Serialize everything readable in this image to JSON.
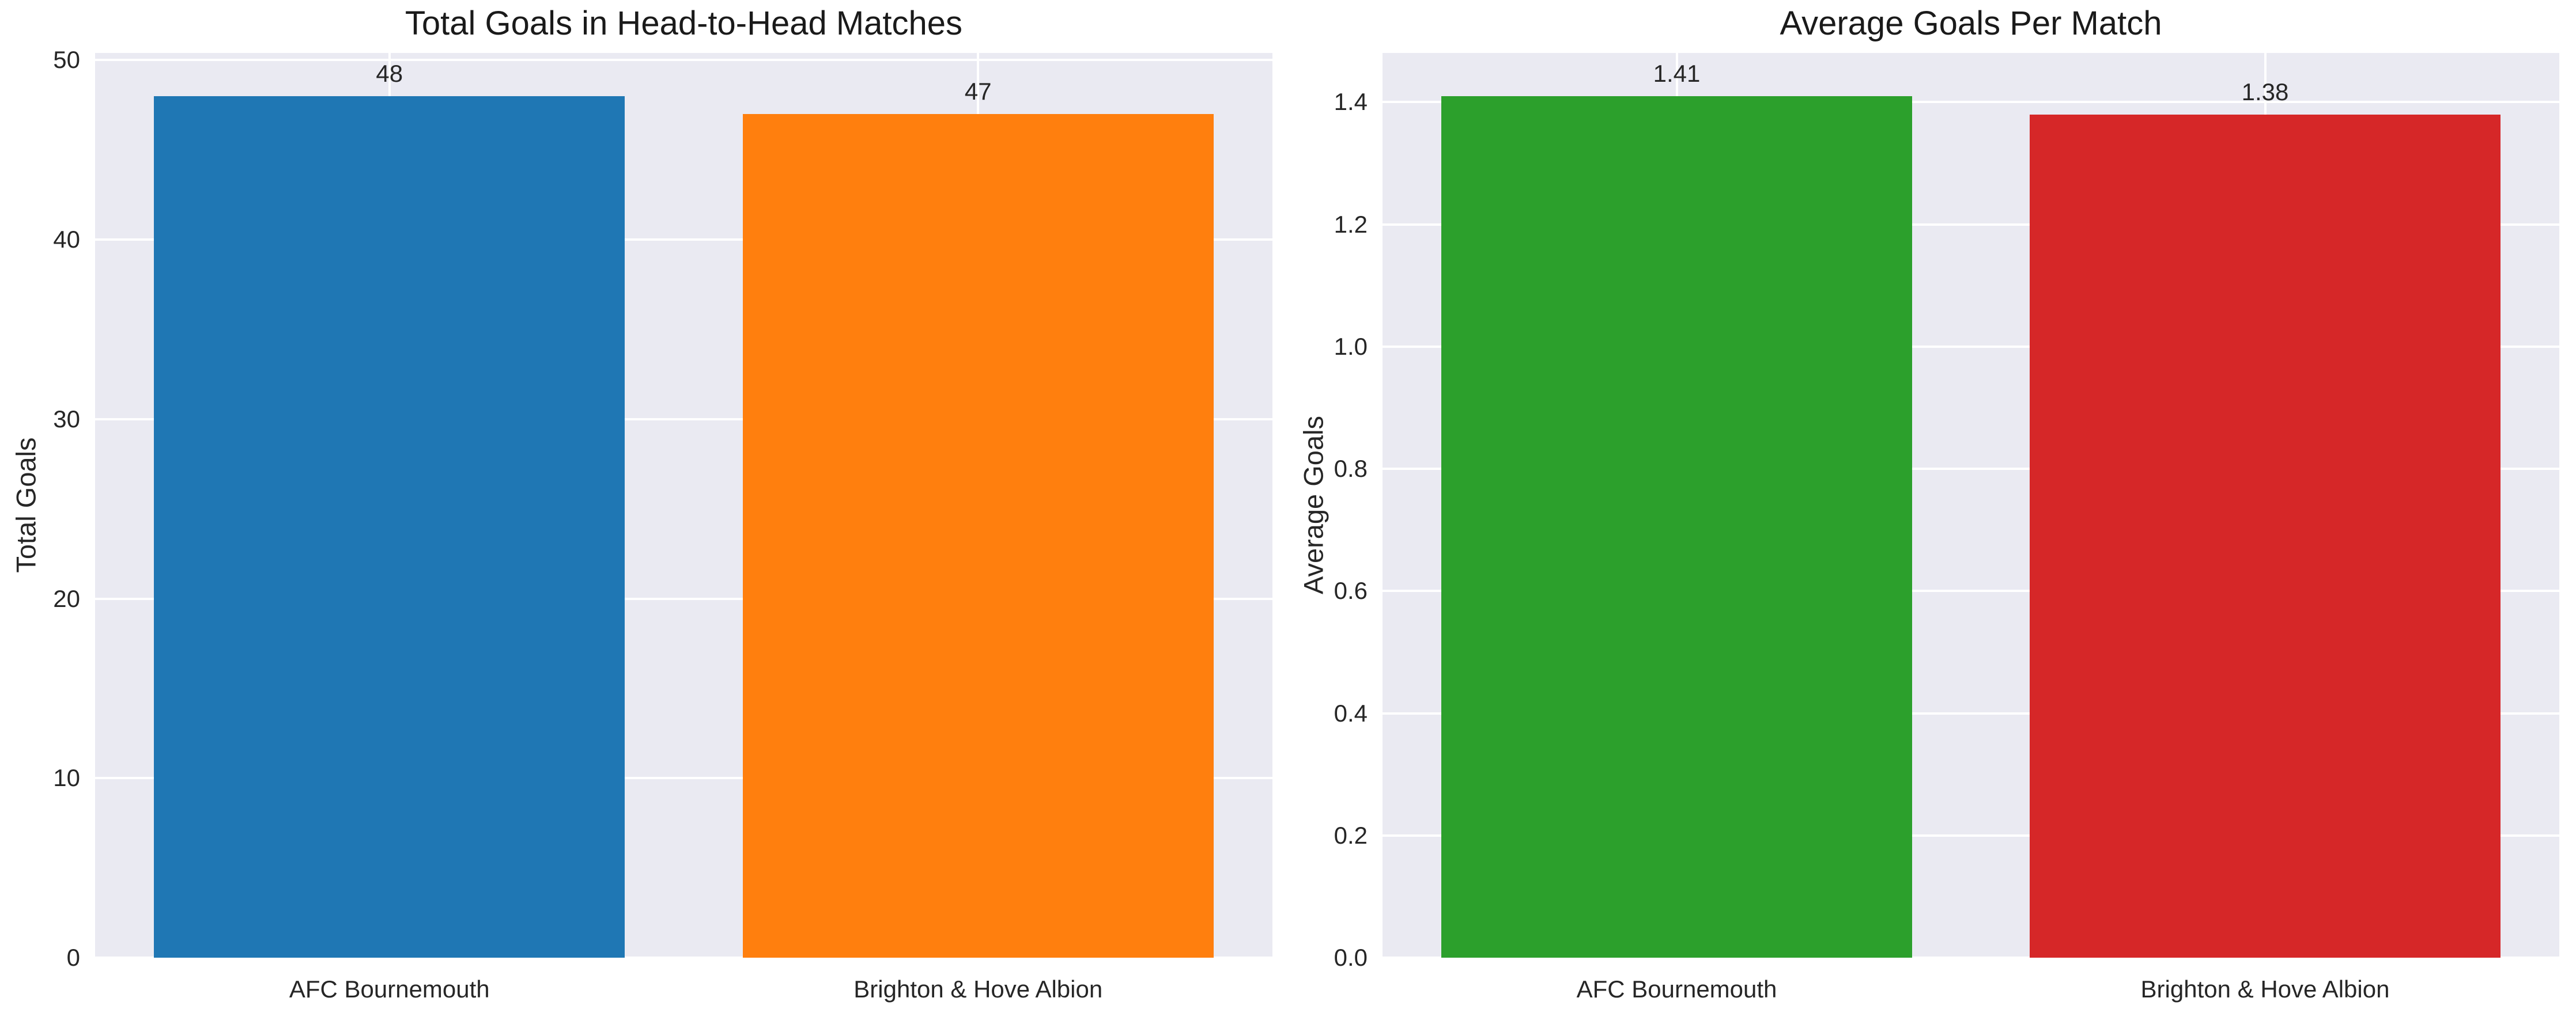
{
  "style": {
    "figure_background": "#ffffff",
    "axes_background": "#eaeaf2",
    "grid_color": "#ffffff",
    "text_color": "#262626",
    "grid": true,
    "legend": "none"
  },
  "chart_data": [
    {
      "type": "bar",
      "title": "Total Goals in Head-to-Head Matches",
      "xlabel": "",
      "ylabel": "Total Goals",
      "categories": [
        "AFC Bournemouth",
        "Brighton & Hove Albion"
      ],
      "values": [
        48,
        47
      ],
      "value_labels": [
        "48",
        "47"
      ],
      "bar_colors": [
        "#1f77b4",
        "#ff7f0e"
      ],
      "yticks": [
        0,
        10,
        20,
        30,
        40,
        50
      ],
      "ytick_labels": [
        "0",
        "10",
        "20",
        "30",
        "40",
        "50"
      ],
      "ylim": [
        0,
        50.4
      ],
      "bar_width_fraction": 0.4,
      "grid": true
    },
    {
      "type": "bar",
      "title": "Average Goals Per Match",
      "xlabel": "",
      "ylabel": "Average Goals",
      "categories": [
        "AFC Bournemouth",
        "Brighton & Hove Albion"
      ],
      "values": [
        1.41,
        1.38
      ],
      "value_labels": [
        "1.41",
        "1.38"
      ],
      "bar_colors": [
        "#2ca02c",
        "#d62728"
      ],
      "yticks": [
        0.0,
        0.2,
        0.4,
        0.6,
        0.8,
        1.0,
        1.2,
        1.4
      ],
      "ytick_labels": [
        "0.0",
        "0.2",
        "0.4",
        "0.6",
        "0.8",
        "1.0",
        "1.2",
        "1.4"
      ],
      "ylim": [
        0,
        1.4805
      ],
      "bar_width_fraction": 0.4,
      "grid": true
    }
  ]
}
